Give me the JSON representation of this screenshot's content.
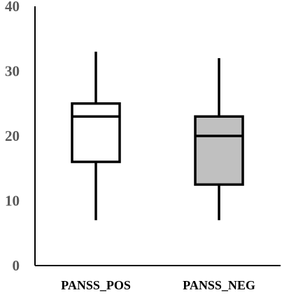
{
  "chart_data": {
    "type": "boxplot",
    "title": "",
    "xlabel": "",
    "ylabel": "",
    "ylim": [
      0,
      40
    ],
    "yticks": [
      "0",
      "10",
      "20",
      "30",
      "40"
    ],
    "grid": false,
    "categories": [
      "PANSS_POS",
      "PANSS_NEG"
    ],
    "boxes": [
      {
        "name": "PANSS_POS",
        "whisker_low": 7,
        "q1": 16,
        "median": 23,
        "q3": 25,
        "whisker_high": 33,
        "fill": "#ffffff"
      },
      {
        "name": "PANSS_NEG",
        "whisker_low": 7,
        "q1": 12.5,
        "median": 20,
        "q3": 23,
        "whisker_high": 32,
        "fill": "#c0c0c0"
      }
    ]
  }
}
